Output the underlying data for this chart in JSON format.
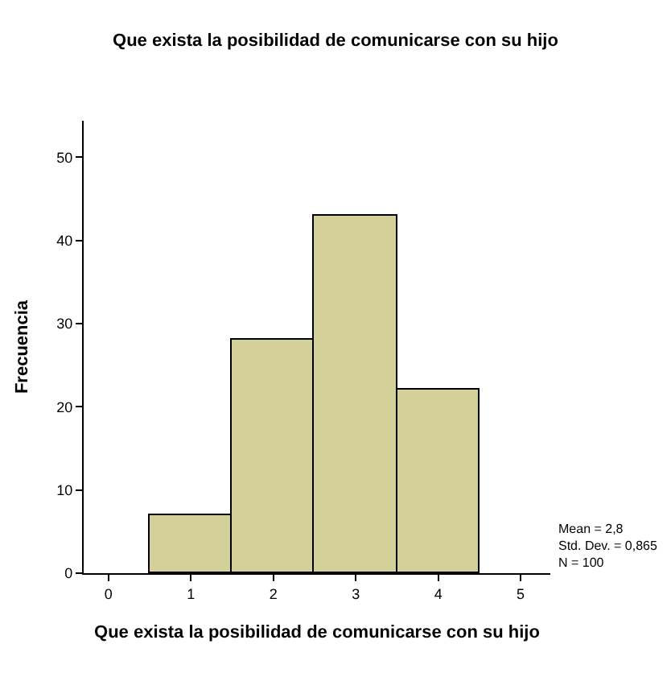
{
  "chart_data": {
    "type": "histogram",
    "title": "Que exista la posibilidad de comunicarse con su hijo",
    "xlabel": "Que exista la posibilidad de comunicarse con su hijo",
    "ylabel": "Frecuencia",
    "bins": [
      0.5,
      1.5,
      2.5,
      3.5,
      4.5
    ],
    "values": [
      7,
      28,
      43,
      22
    ],
    "color": "#d4d09a",
    "xlim": [
      -0.3,
      5.36
    ],
    "xticks": [
      0,
      1,
      2,
      3,
      4,
      5
    ],
    "ylim": [
      0,
      54.4
    ],
    "yticks": [
      0,
      10,
      20,
      30,
      40,
      50
    ],
    "annotations": [
      "Mean = 2,8\nStd. Dev. = 0,865\nN = 100"
    ]
  }
}
